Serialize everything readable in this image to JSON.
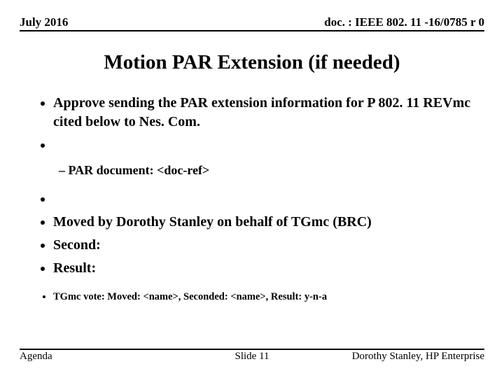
{
  "header": {
    "left": "July 2016",
    "right": "doc. : IEEE 802. 11 -16/0785 r 0"
  },
  "title": "Motion PAR Extension (if needed)",
  "bullets": {
    "b1": "Approve sending the PAR extension information for P 802. 11 REVmc cited below to Nes. Com.",
    "sub1": "PAR document:  <doc-ref>",
    "b2": "Moved by Dorothy Stanley on behalf of TGmc (BRC)",
    "b3": "Second:",
    "b4": "Result:",
    "small": "TGmc vote: Moved: <name>,  Seconded: <name>, Result: y-n-a"
  },
  "footer": {
    "left": "Agenda",
    "center": "Slide 11",
    "right": "Dorothy Stanley, HP Enterprise"
  }
}
